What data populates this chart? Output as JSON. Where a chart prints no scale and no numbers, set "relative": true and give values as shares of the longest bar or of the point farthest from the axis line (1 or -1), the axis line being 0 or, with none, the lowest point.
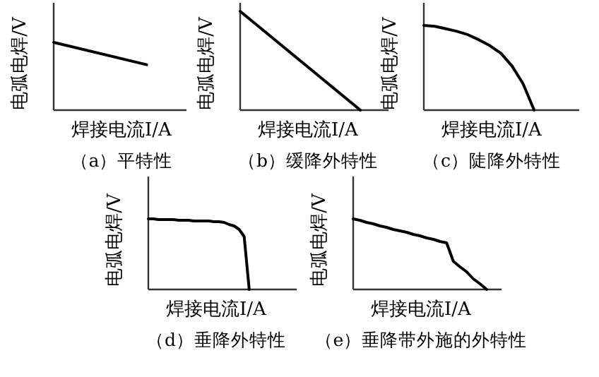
{
  "chart_data": [
    {
      "type": "line",
      "relative": true,
      "title": "（a）平特性",
      "xlabel": "焊接电流I/A",
      "ylabel": "电弧电焊/V",
      "categories": [
        null,
        null
      ],
      "series": [
        {
          "color": "#000000",
          "values": [
            1,
            0.67
          ]
        }
      ]
    },
    {
      "type": "line",
      "relative": true,
      "title": "（b）缓降外特性",
      "xlabel": "焊接电流I/A",
      "ylabel": "电弧电焊/V",
      "categories": [
        null,
        null
      ],
      "series": [
        {
          "color": "#000000",
          "values": [
            1,
            0
          ]
        }
      ]
    },
    {
      "type": "line",
      "relative": true,
      "title": "（c）陡降外特性",
      "xlabel": "焊接电流I/A",
      "ylabel": "电弧电焊/V",
      "categories": [
        null,
        null,
        null,
        null,
        null,
        null,
        null,
        null,
        null,
        null,
        null
      ],
      "series": [
        {
          "color": "#000000",
          "values": [
            1,
            0.99,
            0.96,
            0.93,
            0.89,
            0.83,
            0.76,
            0.67,
            0.52,
            0.31,
            0
          ]
        }
      ]
    },
    {
      "type": "line",
      "relative": true,
      "title": "（d）垂降外特性",
      "xlabel": "焊接电流I/A",
      "ylabel": "电弧电焊/V",
      "categories": [
        null,
        null,
        null,
        null,
        null,
        null,
        null,
        null,
        null,
        null,
        null,
        null,
        null,
        null,
        null,
        null,
        null,
        null,
        null,
        null,
        null
      ],
      "series": [
        {
          "color": "#000000",
          "values": [
            1,
            1,
            0.99,
            0.99,
            0.99,
            0.99,
            0.98,
            0.98,
            0.98,
            0.97,
            0.97,
            0.97,
            0.97,
            0.96,
            0.96,
            0.95,
            0.92,
            0.9,
            0.85,
            0.75,
            0
          ]
        }
      ]
    },
    {
      "type": "line",
      "relative": true,
      "title": "（e）垂降带外施的外特性",
      "xlabel": "焊接电流I/A",
      "ylabel": "电弧电焊/V",
      "categories": [
        null,
        null,
        null,
        null,
        null,
        null,
        null,
        null,
        null,
        null,
        null,
        null,
        null,
        null,
        null,
        null,
        null,
        null,
        null,
        null,
        null
      ],
      "series": [
        {
          "color": "#000000",
          "values": [
            1,
            0.98,
            0.95,
            0.93,
            0.9,
            0.88,
            0.85,
            0.83,
            0.81,
            0.78,
            0.76,
            0.73,
            0.71,
            0.68,
            0.66,
            0.4,
            0.32,
            0.25,
            0.15,
            0.08,
            0
          ]
        }
      ]
    }
  ]
}
